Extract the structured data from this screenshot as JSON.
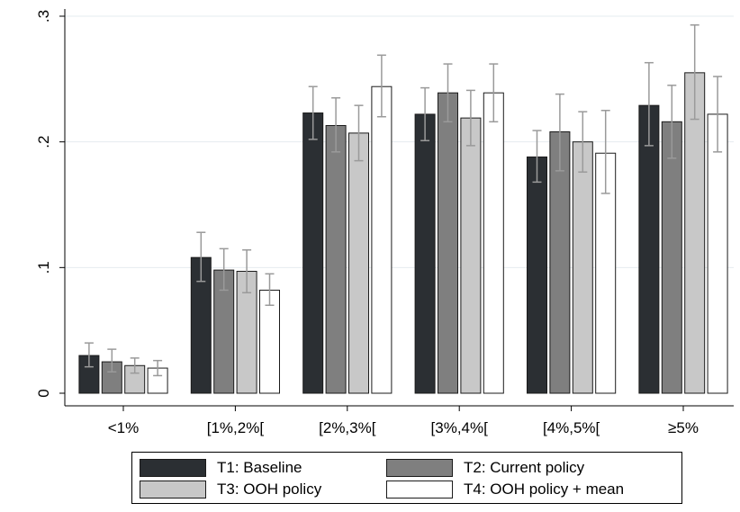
{
  "chart_data": {
    "type": "bar",
    "categories": [
      "<1%",
      "[1%,2%[",
      "[2%,3%[",
      "[3%,4%[",
      "[4%,5%[",
      "≥5%"
    ],
    "ylim": [
      0,
      0.3
    ],
    "yticks": [
      0,
      0.1,
      0.2,
      0.3
    ],
    "ytick_labels": [
      "0",
      ".1",
      ".2",
      ".3"
    ],
    "grid": true,
    "legend_position": "bottom",
    "series": [
      {
        "name": "T1: Baseline",
        "color": "#2b2f33",
        "values": [
          0.03,
          0.108,
          0.223,
          0.222,
          0.188,
          0.229
        ],
        "ci_low": [
          0.021,
          0.089,
          0.202,
          0.201,
          0.168,
          0.197
        ],
        "ci_high": [
          0.04,
          0.128,
          0.244,
          0.243,
          0.209,
          0.263
        ]
      },
      {
        "name": "T2: Current policy",
        "color": "#7f7f7f",
        "values": [
          0.025,
          0.098,
          0.213,
          0.239,
          0.208,
          0.216
        ],
        "ci_low": [
          0.017,
          0.082,
          0.192,
          0.216,
          0.177,
          0.187
        ],
        "ci_high": [
          0.035,
          0.115,
          0.235,
          0.262,
          0.238,
          0.245
        ]
      },
      {
        "name": "T3: OOH policy",
        "color": "#c8c8c8",
        "values": [
          0.022,
          0.097,
          0.207,
          0.219,
          0.2,
          0.255
        ],
        "ci_low": [
          0.016,
          0.08,
          0.185,
          0.197,
          0.176,
          0.218
        ],
        "ci_high": [
          0.028,
          0.114,
          0.229,
          0.241,
          0.224,
          0.293
        ]
      },
      {
        "name": "T4: OOH policy + mean",
        "color": "#ffffff",
        "values": [
          0.02,
          0.082,
          0.244,
          0.239,
          0.191,
          0.222
        ],
        "ci_low": [
          0.014,
          0.07,
          0.22,
          0.216,
          0.159,
          0.192
        ],
        "ci_high": [
          0.026,
          0.095,
          0.269,
          0.262,
          0.225,
          0.252
        ]
      }
    ]
  }
}
